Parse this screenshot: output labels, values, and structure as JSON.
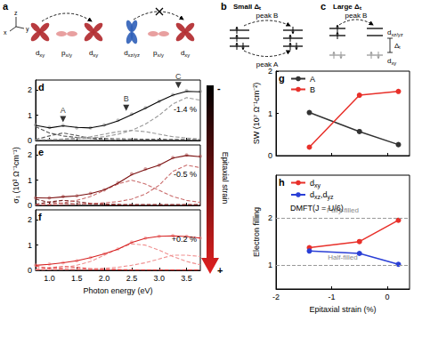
{
  "diagrams": {
    "a": {
      "panel": "a",
      "axes": [
        "z",
        "x",
        "y"
      ],
      "orbitals_left": [
        "dxy",
        "px/y",
        "dxy"
      ],
      "orbitals_right": [
        "dxz/yz",
        "px/y",
        "dxy"
      ]
    },
    "b": {
      "panel": "b",
      "title": "Small Δₜ",
      "upper_arrow": "peak B",
      "lower_arrow": "peak A"
    },
    "c": {
      "panel": "c",
      "title": "Large Δₜ",
      "upper_arrow": "peak B",
      "upper_level": "dxz/yz",
      "gap": "Δₜ",
      "lower_level": "dxy"
    }
  },
  "strain_arrow": {
    "label": "Epitaxial strain",
    "top": "-",
    "bottom": "+"
  },
  "chart_data": [
    {
      "type": "line",
      "panel": "d",
      "annotation": "-1.4 %",
      "x": [
        0.75,
        1,
        1.25,
        1.5,
        1.75,
        2,
        2.25,
        2.5,
        2.75,
        3,
        3.25,
        3.5,
        3.75
      ],
      "xlim": [
        0.75,
        3.75
      ],
      "xticks": [
        {
          "value": 1,
          "label": "1.0"
        },
        1.5,
        {
          "value": 2,
          "label": "2.0"
        },
        2.5,
        {
          "value": 3,
          "label": "3.0"
        },
        3.5
      ],
      "ylim": [
        0,
        2.4
      ],
      "yticks": [
        0,
        1,
        2
      ],
      "tick_labels": "y",
      "series": [
        {
          "type": "scatter",
          "marker": "circle",
          "color": "#8c8c8c",
          "values": [
            0.62,
            0.52,
            0.6,
            0.5,
            0.5,
            0.62,
            0.8,
            1.05,
            1.3,
            1.55,
            1.82,
            1.98,
            1.95
          ]
        },
        {
          "line_style": "dashed",
          "color": "#555555",
          "values": [
            0.55,
            0.3,
            0.18,
            0.12,
            0.1,
            0.08,
            0.07,
            0.06,
            0.05,
            0.05,
            0.04,
            0.04,
            0.04
          ]
        },
        {
          "line_style": "dashed",
          "color": "#555555",
          "values": [
            0.04,
            0.18,
            0.3,
            0.2,
            0.08,
            0.03,
            0.02,
            0.01,
            0.01,
            0.01,
            0.01,
            0.01,
            0.01
          ]
        },
        {
          "line_style": "dashed",
          "color": "#999999",
          "values": [
            0.02,
            0.04,
            0.06,
            0.1,
            0.15,
            0.25,
            0.35,
            0.4,
            0.35,
            0.25,
            0.15,
            0.1,
            0.06
          ]
        },
        {
          "line_style": "dashed",
          "color": "#999999",
          "values": [
            0.02,
            0.03,
            0.05,
            0.07,
            0.1,
            0.15,
            0.25,
            0.4,
            0.65,
            1.0,
            1.45,
            1.7,
            1.6
          ]
        },
        {
          "line_style": "solid",
          "color": "#000000",
          "values": [
            0.6,
            0.5,
            0.58,
            0.52,
            0.5,
            0.6,
            0.78,
            1.02,
            1.28,
            1.55,
            1.8,
            1.95,
            1.93
          ]
        }
      ],
      "markers": [
        {
          "x": 1.25,
          "y": 0.85,
          "label": "A"
        },
        {
          "x": 2.4,
          "y": 1.3,
          "label": "B"
        },
        {
          "x": 3.35,
          "y": 2.2,
          "label": "C"
        }
      ]
    },
    {
      "type": "line",
      "panel": "e",
      "annotation": "-0.5 %",
      "ylabel": "σ₁ (10³ Ω⁻¹cm⁻¹)",
      "x": [
        0.75,
        1,
        1.25,
        1.5,
        1.75,
        2,
        2.25,
        2.5,
        2.75,
        3,
        3.25,
        3.5,
        3.75
      ],
      "xlim": [
        0.75,
        3.75
      ],
      "xticks": [
        {
          "value": 1,
          "label": "1.0"
        },
        1.5,
        {
          "value": 2,
          "label": "2.0"
        },
        2.5,
        {
          "value": 3,
          "label": "3.0"
        },
        3.5
      ],
      "ylim": [
        0,
        2.4
      ],
      "yticks": [
        0,
        1,
        2
      ],
      "tick_labels": "y",
      "series": [
        {
          "type": "scatter",
          "marker": "circle",
          "color": "#b35a5a",
          "values": [
            0.3,
            0.3,
            0.35,
            0.38,
            0.48,
            0.62,
            0.9,
            1.25,
            1.45,
            1.6,
            1.9,
            2.0,
            1.95
          ]
        },
        {
          "line_style": "dashed",
          "color": "#7a2020",
          "values": [
            0.25,
            0.12,
            0.08,
            0.06,
            0.05,
            0.04,
            0.04,
            0.03,
            0.03,
            0.03,
            0.03,
            0.03,
            0.03
          ]
        },
        {
          "line_style": "dashed",
          "color": "#7a2020",
          "values": [
            0.04,
            0.14,
            0.2,
            0.15,
            0.08,
            0.04,
            0.02,
            0.01,
            0.01,
            0.01,
            0.01,
            0.01,
            0.01
          ]
        },
        {
          "line_style": "dashed",
          "color": "#c96a6a",
          "values": [
            0.02,
            0.05,
            0.1,
            0.2,
            0.35,
            0.6,
            0.85,
            1.0,
            0.85,
            0.6,
            0.35,
            0.2,
            0.12
          ]
        },
        {
          "line_style": "dashed",
          "color": "#c96a6a",
          "values": [
            0.01,
            0.02,
            0.03,
            0.05,
            0.07,
            0.1,
            0.15,
            0.25,
            0.45,
            0.8,
            1.35,
            1.6,
            1.5
          ]
        },
        {
          "line_style": "solid",
          "color": "#7a0f0f",
          "values": [
            0.3,
            0.29,
            0.34,
            0.38,
            0.47,
            0.62,
            0.88,
            1.22,
            1.42,
            1.6,
            1.88,
            1.98,
            1.93
          ]
        }
      ]
    },
    {
      "type": "line",
      "panel": "f",
      "annotation": "+0.2 %",
      "xlabel": "Photon energy (eV)",
      "x": [
        0.75,
        1,
        1.25,
        1.5,
        1.75,
        2,
        2.25,
        2.5,
        2.75,
        3,
        3.25,
        3.5,
        3.75
      ],
      "xlim": [
        0.75,
        3.75
      ],
      "xticks": [
        {
          "value": 1,
          "label": "1.0"
        },
        1.5,
        {
          "value": 2,
          "label": "2.0"
        },
        2.5,
        {
          "value": 3,
          "label": "3.0"
        },
        3.5
      ],
      "ylim": [
        0,
        2.4
      ],
      "yticks": [
        0,
        1,
        2
      ],
      "series": [
        {
          "type": "scatter",
          "marker": "circle",
          "color": "#f08a8a",
          "values": [
            0.2,
            0.25,
            0.3,
            0.38,
            0.5,
            0.65,
            0.85,
            1.12,
            1.28,
            1.35,
            1.38,
            1.35,
            1.28
          ]
        },
        {
          "line_style": "dashed",
          "color": "#e04040",
          "values": [
            0.16,
            0.08,
            0.05,
            0.04,
            0.03,
            0.03,
            0.03,
            0.02,
            0.02,
            0.02,
            0.02,
            0.02,
            0.02
          ]
        },
        {
          "line_style": "dashed",
          "color": "#e04040",
          "values": [
            0.03,
            0.1,
            0.15,
            0.12,
            0.06,
            0.03,
            0.02,
            0.01,
            0.01,
            0.01,
            0.01,
            0.01,
            0.01
          ]
        },
        {
          "line_style": "dashed",
          "color": "#f09090",
          "values": [
            0.02,
            0.05,
            0.1,
            0.2,
            0.35,
            0.6,
            0.85,
            1.05,
            1.0,
            0.8,
            0.55,
            0.35,
            0.22
          ]
        },
        {
          "line_style": "dashed",
          "color": "#f09090",
          "values": [
            0.01,
            0.02,
            0.03,
            0.04,
            0.06,
            0.08,
            0.12,
            0.2,
            0.3,
            0.45,
            0.6,
            0.6,
            0.55
          ]
        },
        {
          "line_style": "solid",
          "color": "#d62020",
          "values": [
            0.2,
            0.24,
            0.3,
            0.38,
            0.5,
            0.65,
            0.84,
            1.1,
            1.27,
            1.35,
            1.37,
            1.34,
            1.28
          ]
        }
      ]
    },
    {
      "type": "line",
      "panel": "g",
      "ylabel": "SW (10⁷ Ω⁻¹cm⁻²)",
      "x": [
        -1.4,
        -0.5,
        0.2
      ],
      "xlim": [
        -2,
        0.4
      ],
      "xticks": [
        -2,
        -1,
        0
      ],
      "ylim": [
        0,
        2
      ],
      "yticks": [
        0,
        1,
        2
      ],
      "tick_labels": "y",
      "legend": "upper left",
      "series": [
        {
          "name": "A",
          "color": "#333333",
          "marker": "circle",
          "line_style": "solid",
          "values": [
            1.02,
            0.57,
            0.26
          ]
        },
        {
          "name": "B",
          "color": "#e8302a",
          "marker": "circle",
          "line_style": "solid",
          "values": [
            0.2,
            1.43,
            1.52
          ]
        }
      ]
    },
    {
      "type": "line",
      "panel": "h",
      "annotation": "DMFT(J = U/6)",
      "xlabel": "Epitaxial strain (%)",
      "ylabel": "Electron filling",
      "x": [
        -1.4,
        -0.5,
        0.2
      ],
      "xlim": [
        -2,
        0.4
      ],
      "xticks": [
        -2,
        -1,
        0
      ],
      "ylim": [
        0.5,
        2.9
      ],
      "yticks": [
        1,
        2
      ],
      "legend": "upper left",
      "ref_lines": [
        {
          "y": 2,
          "label": "Fully-filled"
        },
        {
          "y": 1,
          "label": "Half-filled"
        }
      ],
      "series": [
        {
          "name": "dxy",
          "color": "#e8302a",
          "marker": "circle",
          "line_style": "solid",
          "values": [
            1.37,
            1.5,
            1.95
          ]
        },
        {
          "name": "dxz,dyz",
          "color": "#2a3fd6",
          "marker": "circle",
          "line_style": "solid",
          "values": [
            1.3,
            1.25,
            1.02
          ]
        }
      ]
    }
  ]
}
